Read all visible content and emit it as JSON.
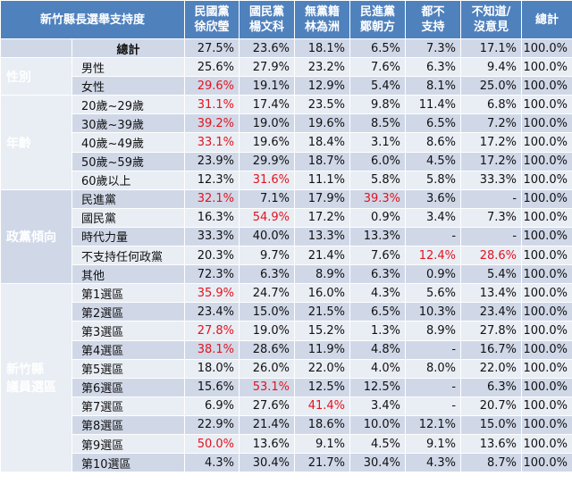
{
  "table": {
    "title": "新竹縣長選舉支持度",
    "headers": [
      [
        "民國黨",
        "徐欣瑩"
      ],
      [
        "國民黨",
        "楊文科"
      ],
      [
        "無黨籍",
        "林為洲"
      ],
      [
        "民進黨",
        "鄭朝方"
      ],
      [
        "都不",
        "支持"
      ],
      [
        "不知道/",
        "沒意見"
      ],
      [
        "總計"
      ]
    ],
    "total_row": {
      "label": "總計",
      "values": [
        "27.5%",
        "23.6%",
        "18.1%",
        "6.5%",
        "7.3%",
        "17.1%",
        "100.0%"
      ]
    },
    "groups": [
      {
        "label": "性別",
        "rows": [
          {
            "label": "男性",
            "values": [
              "25.6%",
              "27.9%",
              "23.2%",
              "7.6%",
              "6.3%",
              "9.4%",
              "100.0%"
            ],
            "highlight": []
          },
          {
            "label": "女性",
            "values": [
              "29.6%",
              "19.1%",
              "12.9%",
              "5.4%",
              "8.1%",
              "25.0%",
              "100.0%"
            ],
            "highlight": [
              0
            ]
          }
        ]
      },
      {
        "label": "年齡",
        "rows": [
          {
            "label": "20歲~29歲",
            "values": [
              "31.1%",
              "17.4%",
              "23.5%",
              "9.8%",
              "11.4%",
              "6.8%",
              "100.0%"
            ],
            "highlight": [
              0
            ]
          },
          {
            "label": "30歲~39歲",
            "values": [
              "39.2%",
              "19.0%",
              "19.6%",
              "8.5%",
              "6.5%",
              "7.2%",
              "100.0%"
            ],
            "highlight": [
              0
            ]
          },
          {
            "label": "40歲~49歲",
            "values": [
              "33.1%",
              "19.6%",
              "18.4%",
              "3.1%",
              "8.6%",
              "17.2%",
              "100.0%"
            ],
            "highlight": [
              0
            ]
          },
          {
            "label": "50歲~59歲",
            "values": [
              "23.9%",
              "29.9%",
              "18.7%",
              "6.0%",
              "4.5%",
              "17.2%",
              "100.0%"
            ],
            "highlight": []
          },
          {
            "label": "60歲以上",
            "values": [
              "12.3%",
              "31.6%",
              "11.1%",
              "5.8%",
              "5.8%",
              "33.3%",
              "100.0%"
            ],
            "highlight": [
              1
            ]
          }
        ]
      },
      {
        "label": "政黨傾向",
        "rows": [
          {
            "label": "民進黨",
            "values": [
              "32.1%",
              "7.1%",
              "17.9%",
              "39.3%",
              "3.6%",
              "-",
              "100.0%"
            ],
            "highlight": [
              0,
              3
            ]
          },
          {
            "label": "國民黨",
            "values": [
              "16.3%",
              "54.9%",
              "17.2%",
              "0.9%",
              "3.4%",
              "7.3%",
              "100.0%"
            ],
            "highlight": [
              1
            ]
          },
          {
            "label": "時代力量",
            "values": [
              "33.3%",
              "40.0%",
              "13.3%",
              "13.3%",
              "-",
              "-",
              "100.0%"
            ],
            "highlight": []
          },
          {
            "label": "不支持任何政黨",
            "values": [
              "20.3%",
              "9.7%",
              "21.4%",
              "7.6%",
              "12.4%",
              "28.6%",
              "100.0%"
            ],
            "highlight": [
              4,
              5
            ]
          },
          {
            "label": "其他",
            "values": [
              "72.3%",
              "6.3%",
              "8.9%",
              "6.3%",
              "0.9%",
              "5.4%",
              "100.0%"
            ],
            "highlight": []
          }
        ]
      },
      {
        "label": "新竹縣議員選區",
        "label_lines": [
          "新竹縣",
          "議員選區"
        ],
        "rows": [
          {
            "label": "第1選區",
            "values": [
              "35.9%",
              "24.7%",
              "16.0%",
              "4.3%",
              "5.6%",
              "13.4%",
              "100.0%"
            ],
            "highlight": [
              0
            ]
          },
          {
            "label": "第2選區",
            "values": [
              "23.4%",
              "15.0%",
              "21.5%",
              "6.5%",
              "10.3%",
              "23.4%",
              "100.0%"
            ],
            "highlight": []
          },
          {
            "label": "第3選區",
            "values": [
              "27.8%",
              "19.0%",
              "15.2%",
              "1.3%",
              "8.9%",
              "27.8%",
              "100.0%"
            ],
            "highlight": [
              0
            ]
          },
          {
            "label": "第4選區",
            "values": [
              "38.1%",
              "28.6%",
              "11.9%",
              "4.8%",
              "-",
              "16.7%",
              "100.0%"
            ],
            "highlight": [
              0
            ]
          },
          {
            "label": "第5選區",
            "values": [
              "18.0%",
              "26.0%",
              "22.0%",
              "4.0%",
              "8.0%",
              "22.0%",
              "100.0%"
            ],
            "highlight": []
          },
          {
            "label": "第6選區",
            "values": [
              "15.6%",
              "53.1%",
              "12.5%",
              "12.5%",
              "-",
              "6.3%",
              "100.0%"
            ],
            "highlight": [
              1
            ]
          },
          {
            "label": "第7選區",
            "values": [
              "6.9%",
              "27.6%",
              "41.4%",
              "3.4%",
              "-",
              "20.7%",
              "100.0%"
            ],
            "highlight": [
              2
            ]
          },
          {
            "label": "第8選區",
            "values": [
              "22.9%",
              "21.4%",
              "18.6%",
              "10.0%",
              "12.1%",
              "15.0%",
              "100.0%"
            ],
            "highlight": []
          },
          {
            "label": "第9選區",
            "values": [
              "50.0%",
              "13.6%",
              "9.1%",
              "4.5%",
              "9.1%",
              "13.6%",
              "100.0%"
            ],
            "highlight": [
              0
            ]
          },
          {
            "label": "第10選區",
            "values": [
              "4.3%",
              "30.4%",
              "21.7%",
              "30.4%",
              "4.3%",
              "8.7%",
              "100.0%"
            ],
            "highlight": []
          }
        ]
      }
    ]
  }
}
